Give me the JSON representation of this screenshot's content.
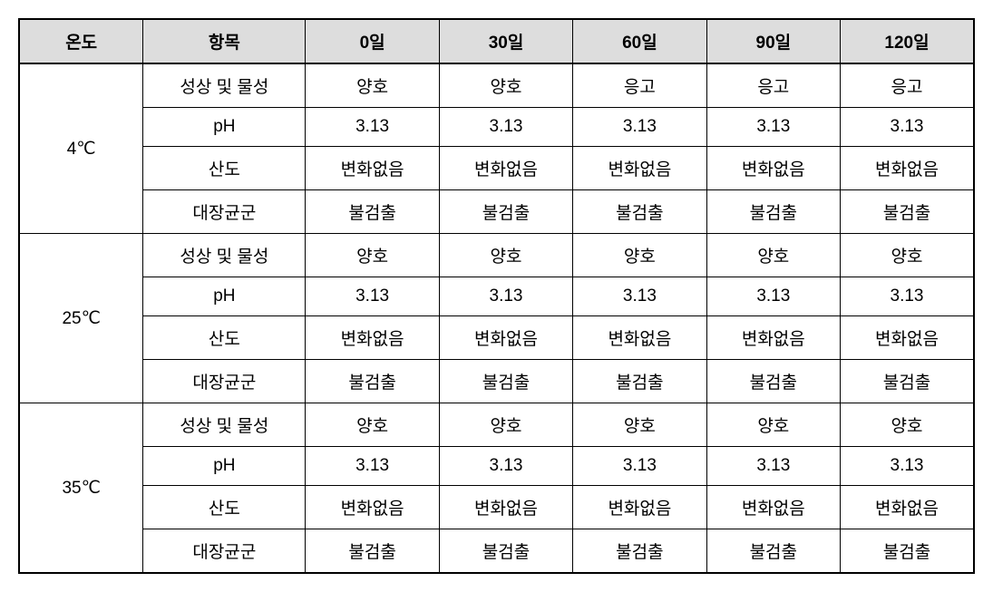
{
  "table": {
    "header_bg": "#dddddd",
    "col_temp_width": "13%",
    "col_item_width": "17%",
    "col_data_width": "14%",
    "columns": [
      "온도",
      "항목",
      "0일",
      "30일",
      "60일",
      "90일",
      "120일"
    ],
    "groups": [
      {
        "temp": "4℃",
        "rows": [
          {
            "item": "성상 및 물성",
            "d0": "양호",
            "d30": "양호",
            "d60": "응고",
            "d90": "응고",
            "d120": "응고"
          },
          {
            "item": "pH",
            "d0": "3.13",
            "d30": "3.13",
            "d60": "3.13",
            "d90": "3.13",
            "d120": "3.13"
          },
          {
            "item": "산도",
            "d0": "변화없음",
            "d30": "변화없음",
            "d60": "변화없음",
            "d90": "변화없음",
            "d120": "변화없음"
          },
          {
            "item": "대장균군",
            "d0": "불검출",
            "d30": "불검출",
            "d60": "불검출",
            "d90": "불검출",
            "d120": "불검출"
          }
        ]
      },
      {
        "temp": "25℃",
        "rows": [
          {
            "item": "성상 및 물성",
            "d0": "양호",
            "d30": "양호",
            "d60": "양호",
            "d90": "양호",
            "d120": "양호"
          },
          {
            "item": "pH",
            "d0": "3.13",
            "d30": "3.13",
            "d60": "3.13",
            "d90": "3.13",
            "d120": "3.13"
          },
          {
            "item": "산도",
            "d0": "변화없음",
            "d30": "변화없음",
            "d60": "변화없음",
            "d90": "변화없음",
            "d120": "변화없음"
          },
          {
            "item": "대장균군",
            "d0": "불검출",
            "d30": "불검출",
            "d60": "불검출",
            "d90": "불검출",
            "d120": "불검출"
          }
        ]
      },
      {
        "temp": "35℃",
        "rows": [
          {
            "item": "성상 및 물성",
            "d0": "양호",
            "d30": "양호",
            "d60": "양호",
            "d90": "양호",
            "d120": "양호"
          },
          {
            "item": "pH",
            "d0": "3.13",
            "d30": "3.13",
            "d60": "3.13",
            "d90": "3.13",
            "d120": "3.13"
          },
          {
            "item": "산도",
            "d0": "변화없음",
            "d30": "변화없음",
            "d60": "변화없음",
            "d90": "변화없음",
            "d120": "변화없음"
          },
          {
            "item": "대장균군",
            "d0": "불검출",
            "d30": "불검출",
            "d60": "불검출",
            "d90": "불검출",
            "d120": "불검출"
          }
        ]
      }
    ]
  }
}
